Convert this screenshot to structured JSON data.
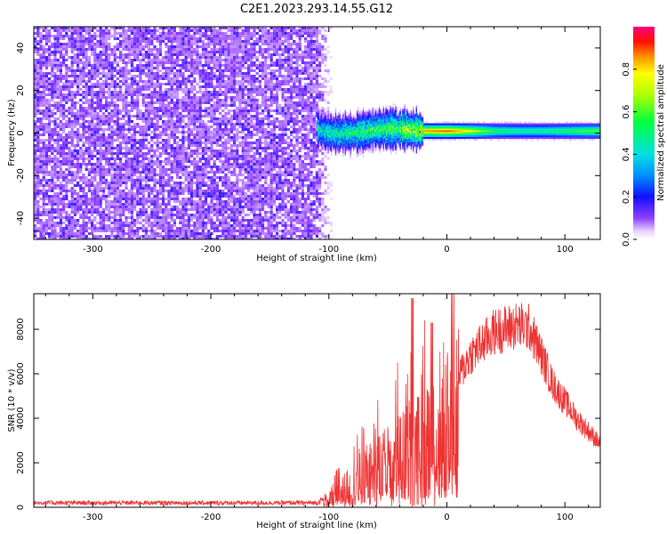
{
  "title": "C2E1.2023.293.14.55.G12",
  "colors": {
    "noise": "#7b22e8",
    "line": "#ee3333",
    "frame": "#000000"
  },
  "chart_data": [
    {
      "type": "heatmap",
      "xlabel": "Height of straight line (km)",
      "ylabel": "Frequency (Hz)",
      "xlim": [
        -350,
        130
      ],
      "ylim": [
        -50,
        50
      ],
      "xticks": [
        -300,
        -200,
        -100,
        0,
        100
      ],
      "yticks": [
        -40,
        -20,
        0,
        20,
        40
      ],
      "colorbar": {
        "label": "Normalized spectral amplitude",
        "range": [
          0,
          1
        ],
        "ticks": [
          "0.0",
          "0.2",
          "0.4",
          "0.6",
          "0.8"
        ]
      },
      "noise_region_x": [
        -350,
        -97
      ],
      "signal_track": [
        {
          "x": -110,
          "f": 2,
          "amp": 0.45
        },
        {
          "x": -100,
          "f": 0,
          "amp": 0.5
        },
        {
          "x": -80,
          "f": 0,
          "amp": 0.55
        },
        {
          "x": -60,
          "f": 2,
          "amp": 0.6
        },
        {
          "x": -40,
          "f": 2,
          "amp": 0.65
        },
        {
          "x": -20,
          "f": 1,
          "amp": 0.85
        },
        {
          "x": 0,
          "f": 1,
          "amp": 0.9
        },
        {
          "x": 20,
          "f": 1,
          "amp": 0.75
        },
        {
          "x": 40,
          "f": 1,
          "amp": 0.55
        },
        {
          "x": 60,
          "f": 1,
          "amp": 0.5
        },
        {
          "x": 80,
          "f": 1,
          "amp": 0.5
        },
        {
          "x": 100,
          "f": 1,
          "amp": 0.55
        },
        {
          "x": 120,
          "f": 1,
          "amp": 0.6
        }
      ]
    },
    {
      "type": "line",
      "xlabel": "Height of straight line (km)",
      "ylabel": "SNR (10 * v/v)",
      "xlim": [
        -350,
        130
      ],
      "ylim": [
        0,
        9600
      ],
      "xticks": [
        -300,
        -200,
        -100,
        0,
        100
      ],
      "yticks": [
        0,
        2000,
        4000,
        6000,
        8000
      ],
      "envelope": [
        {
          "x": -350,
          "y": 200
        },
        {
          "x": -110,
          "y": 200
        },
        {
          "x": -100,
          "y": 500
        },
        {
          "x": -80,
          "y": 1500
        },
        {
          "x": -60,
          "y": 2500
        },
        {
          "x": -40,
          "y": 3200
        },
        {
          "x": -20,
          "y": 4000
        },
        {
          "x": 0,
          "y": 5200
        },
        {
          "x": 20,
          "y": 7200
        },
        {
          "x": 40,
          "y": 8300
        },
        {
          "x": 60,
          "y": 8600
        },
        {
          "x": 70,
          "y": 8500
        },
        {
          "x": 80,
          "y": 7200
        },
        {
          "x": 90,
          "y": 5800
        },
        {
          "x": 110,
          "y": 4200
        },
        {
          "x": 130,
          "y": 3000
        }
      ]
    }
  ]
}
